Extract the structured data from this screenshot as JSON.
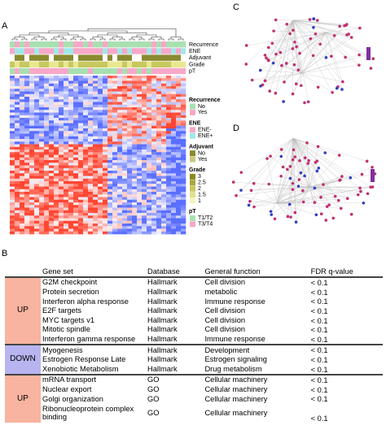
{
  "panels": {
    "a": "A",
    "b": "B",
    "c": "C",
    "d": "D"
  },
  "heatmap": {
    "annotations": [
      "Recurrence",
      "ENE",
      "Adjuvant",
      "Grade",
      "pT"
    ],
    "legend": [
      {
        "title": "Recurrence",
        "items": [
          "No",
          "Yes"
        ]
      },
      {
        "title": "ENE",
        "items": [
          "ENE-",
          "ENE+"
        ]
      },
      {
        "title": "Adjuvant",
        "items": [
          "No",
          "Yes"
        ]
      },
      {
        "title": "Grade",
        "items": [
          "3",
          "2.5",
          "2",
          "1.5",
          "1"
        ]
      },
      {
        "title": "pT",
        "items": [
          "T1/T2",
          "T3/T4"
        ]
      }
    ]
  },
  "table": {
    "header": [
      "Gene set",
      "Database",
      "General function",
      "FDR q-value"
    ],
    "groups": [
      {
        "label": "UP",
        "rows": [
          [
            "G2M checkpoint",
            "Hallmark",
            "Cell division",
            "< 0.1"
          ],
          [
            "Protein secretion",
            "Hallmark",
            "metabolic",
            "< 0.1"
          ],
          [
            "Interferon alpha response",
            "Hallmark",
            "Immune response",
            "< 0.1"
          ],
          [
            "E2F targets",
            "Hallmark",
            "Cell division",
            "< 0.1"
          ],
          [
            "MYC targets v1",
            "Hallmark",
            "Cell division",
            "< 0.1"
          ],
          [
            "Mitotic spindle",
            "Hallmark",
            "Cell division",
            "< 0.1"
          ],
          [
            "Interferon gamma response",
            "Hallmark",
            "Immune response",
            "< 0.1"
          ]
        ]
      },
      {
        "label": "DOWN",
        "rows": [
          [
            "Myogenesis",
            "Hallmark",
            "Development",
            "< 0.1"
          ],
          [
            "Estrogen Response Late",
            "Hallmark",
            "Estrogen signaling",
            "< 0.1"
          ],
          [
            "Xenobiotic Metabolism",
            "Hallmark",
            "Drug metabolism",
            "< 0.1"
          ]
        ]
      },
      {
        "label": "UP",
        "rows": [
          [
            "mRNA transport",
            "GO",
            "Cellular machinery",
            "< 0.1"
          ],
          [
            "Nuclear export",
            "GO",
            "Cellular machinery",
            "< 0.1"
          ],
          [
            "Golgi organization",
            "GO",
            "Cellular machinery",
            "< 0.1"
          ],
          [
            "Ribonucleoprotein complex binding",
            "GO",
            "Cellular machinery",
            "< 0.1"
          ]
        ]
      }
    ]
  }
}
